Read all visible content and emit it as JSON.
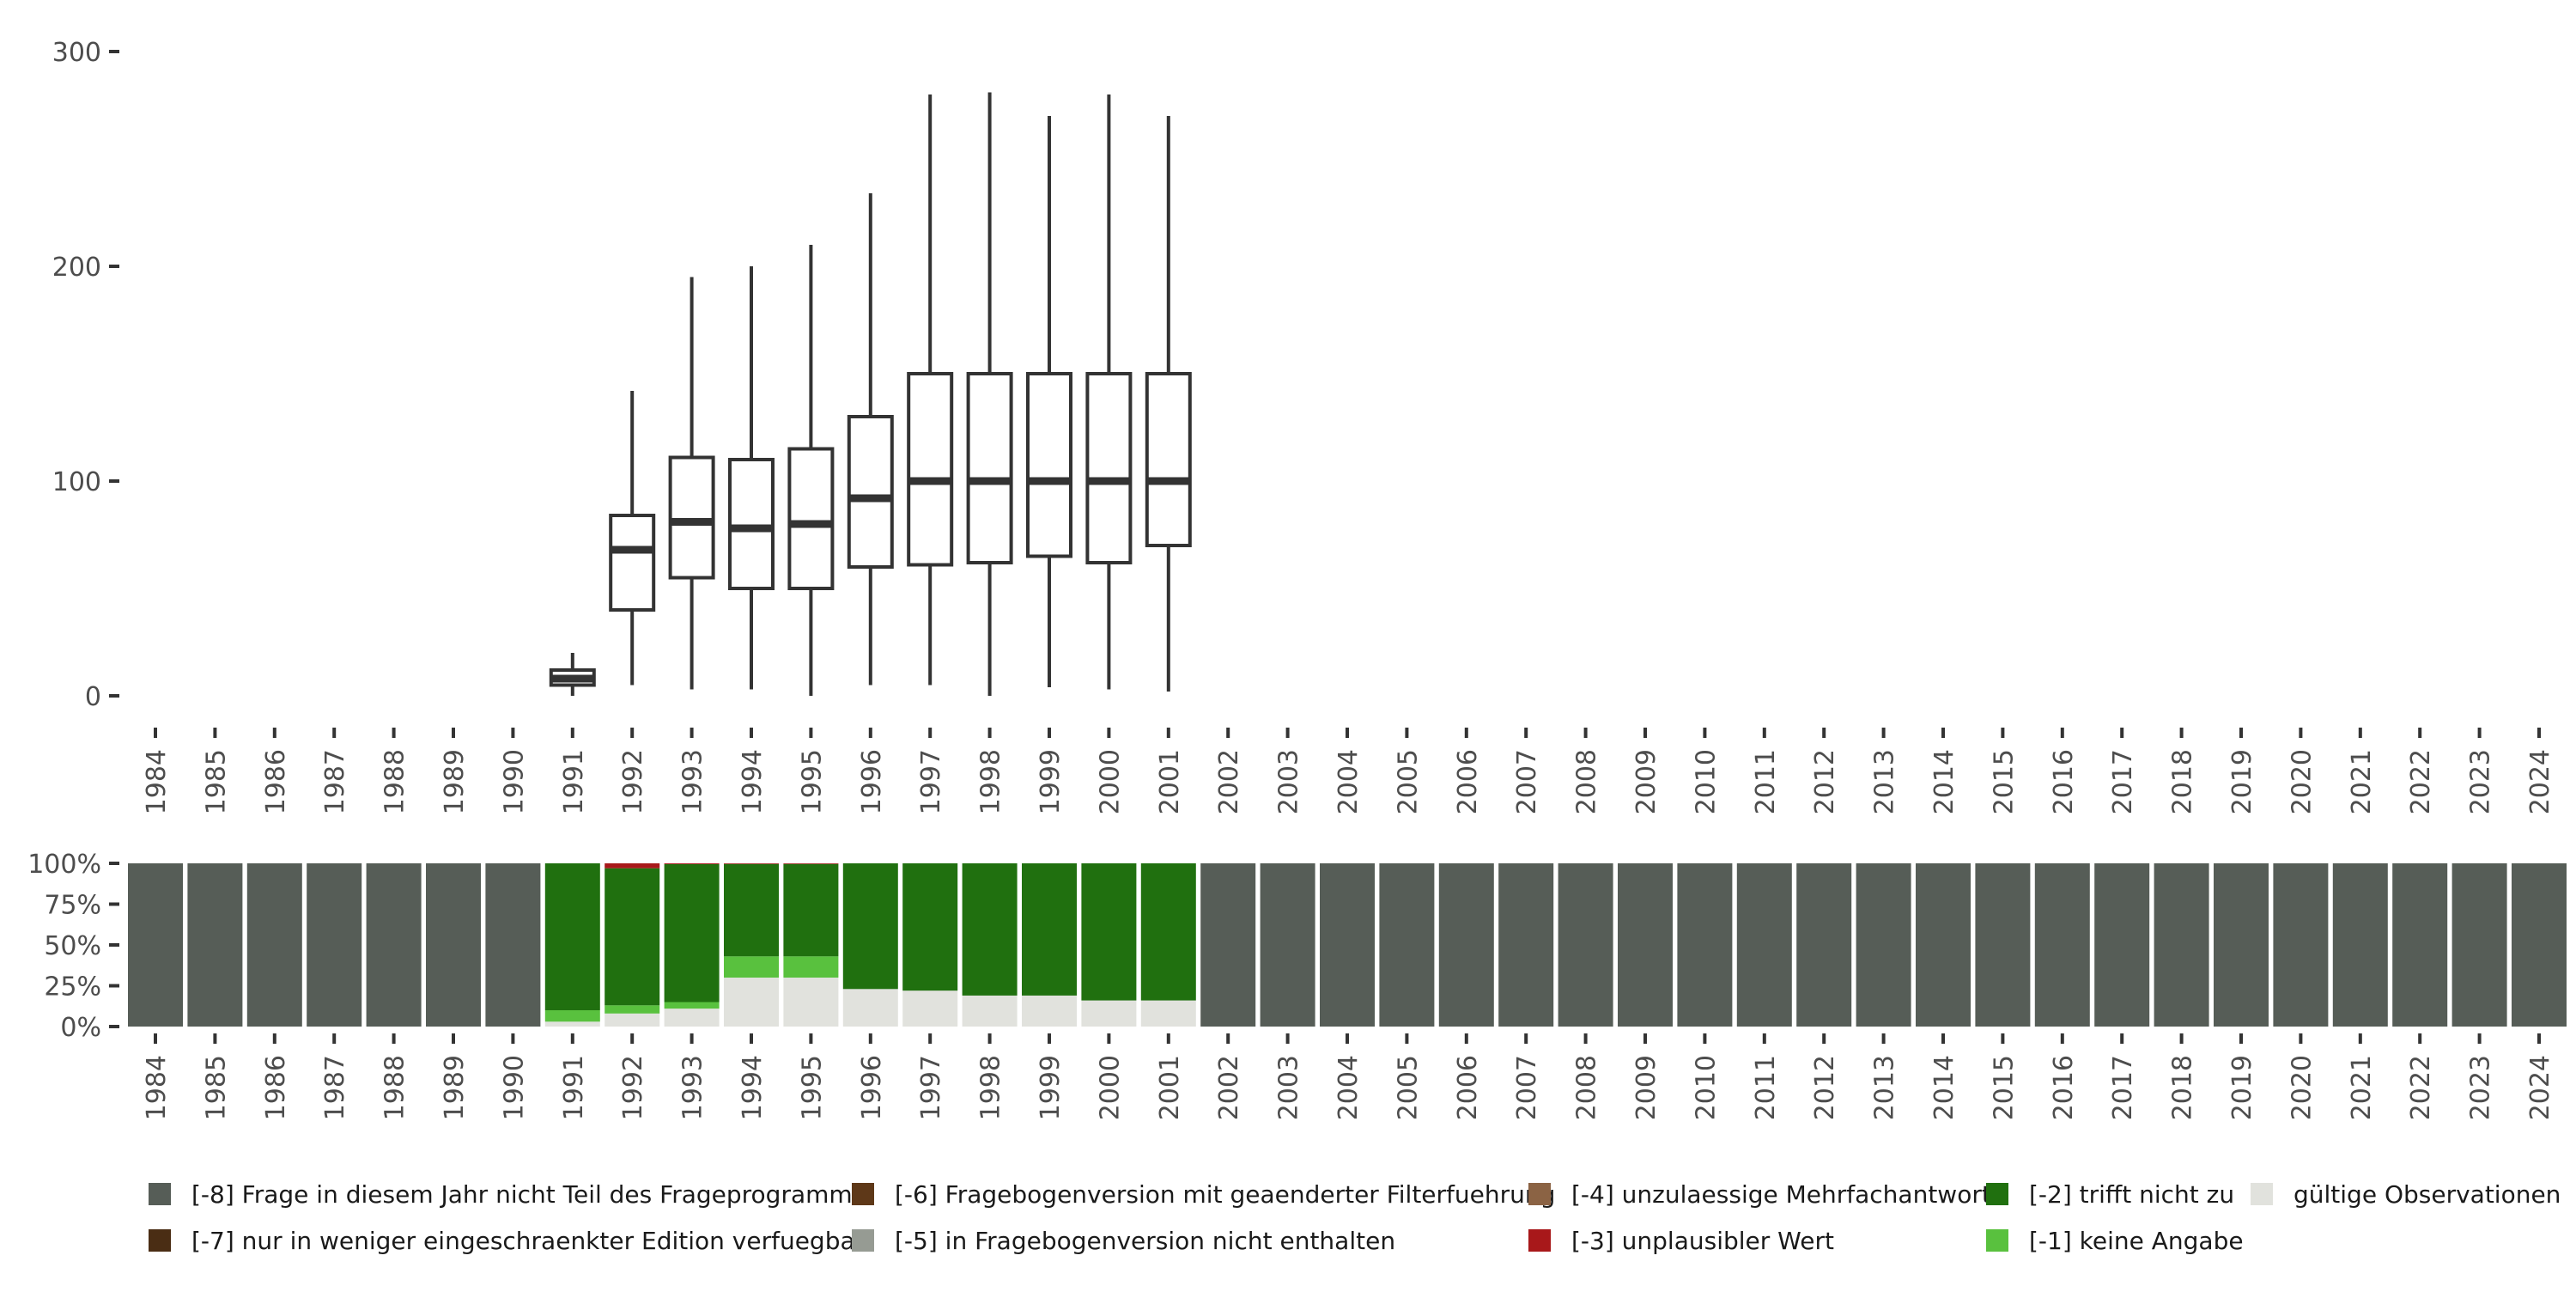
{
  "chart_data": [
    {
      "type": "boxplot",
      "title": "",
      "xlabel": "",
      "ylabel": "",
      "ylim": [
        0,
        300
      ],
      "y_ticks": [
        "0",
        "100",
        "200",
        "300"
      ],
      "categories": [
        "1984",
        "1985",
        "1986",
        "1987",
        "1988",
        "1989",
        "1990",
        "1991",
        "1992",
        "1993",
        "1994",
        "1995",
        "1996",
        "1997",
        "1998",
        "1999",
        "2000",
        "2001",
        "2002",
        "2003",
        "2004",
        "2005",
        "2006",
        "2007",
        "2008",
        "2009",
        "2010",
        "2011",
        "2012",
        "2013",
        "2014",
        "2015",
        "2016",
        "2017",
        "2018",
        "2019",
        "2020",
        "2021",
        "2022",
        "2023",
        "2024"
      ],
      "boxes": [
        {
          "year": "1991",
          "whisker_low": 0,
          "q1": 5,
          "median": 8,
          "q3": 12,
          "whisker_high": 20
        },
        {
          "year": "1992",
          "whisker_low": 5,
          "q1": 40,
          "median": 68,
          "q3": 84,
          "whisker_high": 142
        },
        {
          "year": "1993",
          "whisker_low": 3,
          "q1": 55,
          "median": 81,
          "q3": 111,
          "whisker_high": 195
        },
        {
          "year": "1994",
          "whisker_low": 3,
          "q1": 50,
          "median": 78,
          "q3": 110,
          "whisker_high": 200
        },
        {
          "year": "1995",
          "whisker_low": 0,
          "q1": 50,
          "median": 80,
          "q3": 115,
          "whisker_high": 210
        },
        {
          "year": "1996",
          "whisker_low": 5,
          "q1": 60,
          "median": 92,
          "q3": 130,
          "whisker_high": 234
        },
        {
          "year": "1997",
          "whisker_low": 5,
          "q1": 61,
          "median": 100,
          "q3": 150,
          "whisker_high": 280
        },
        {
          "year": "1998",
          "whisker_low": 0,
          "q1": 62,
          "median": 100,
          "q3": 150,
          "whisker_high": 281
        },
        {
          "year": "1999",
          "whisker_low": 4,
          "q1": 65,
          "median": 100,
          "q3": 150,
          "whisker_high": 270
        },
        {
          "year": "2000",
          "whisker_low": 3,
          "q1": 62,
          "median": 100,
          "q3": 150,
          "whisker_high": 280
        },
        {
          "year": "2001",
          "whisker_low": 2,
          "q1": 70,
          "median": 100,
          "q3": 150,
          "whisker_high": 270
        }
      ]
    },
    {
      "type": "stacked_bar",
      "title": "",
      "ylim": [
        0,
        100
      ],
      "y_ticks": [
        "0%",
        "25%",
        "50%",
        "75%",
        "100%"
      ],
      "categories": [
        "1984",
        "1985",
        "1986",
        "1987",
        "1988",
        "1989",
        "1990",
        "1991",
        "1992",
        "1993",
        "1994",
        "1995",
        "1996",
        "1997",
        "1998",
        "1999",
        "2000",
        "2001",
        "2002",
        "2003",
        "2004",
        "2005",
        "2006",
        "2007",
        "2008",
        "2009",
        "2010",
        "2011",
        "2012",
        "2013",
        "2014",
        "2015",
        "2016",
        "2017",
        "2018",
        "2019",
        "2020",
        "2021",
        "2022",
        "2023",
        "2024"
      ],
      "series": [
        {
          "name": "gültige Observationen",
          "color": "#e1e2dd",
          "values": [
            0,
            0,
            0,
            0,
            0,
            0,
            0,
            3,
            8,
            11,
            30,
            30,
            23,
            22,
            19,
            19,
            16,
            16,
            0,
            0,
            0,
            0,
            0,
            0,
            0,
            0,
            0,
            0,
            0,
            0,
            0,
            0,
            0,
            0,
            0,
            0,
            0,
            0,
            0,
            0,
            0
          ]
        },
        {
          "name": "[-1] keine Angabe",
          "color": "#59c13e",
          "values": [
            0,
            0,
            0,
            0,
            0,
            0,
            0,
            7,
            5,
            4,
            13,
            13,
            0,
            0,
            0,
            0,
            0,
            0,
            0,
            0,
            0,
            0,
            0,
            0,
            0,
            0,
            0,
            0,
            0,
            0,
            0,
            0,
            0,
            0,
            0,
            0,
            0,
            0,
            0,
            0,
            0
          ]
        },
        {
          "name": "[-2] trifft nicht zu",
          "color": "#20700f",
          "values": [
            0,
            0,
            0,
            0,
            0,
            0,
            0,
            90,
            84,
            84.5,
            56.6,
            56.6,
            77,
            78,
            81,
            81,
            84,
            84,
            0,
            0,
            0,
            0,
            0,
            0,
            0,
            0,
            0,
            0,
            0,
            0,
            0,
            0,
            0,
            0,
            0,
            0,
            0,
            0,
            0,
            0,
            0
          ]
        },
        {
          "name": "[-3] unplausibler Wert",
          "color": "#a8181a",
          "values": [
            0,
            0,
            0,
            0,
            0,
            0,
            0,
            0,
            3,
            0.5,
            0.4,
            0.4,
            0,
            0,
            0,
            0,
            0,
            0,
            0,
            0,
            0,
            0,
            0,
            0,
            0,
            0,
            0,
            0,
            0,
            0,
            0,
            0,
            0,
            0,
            0,
            0,
            0,
            0,
            0,
            0,
            0
          ]
        },
        {
          "name": "[-8] Frage in diesem Jahr nicht Teil des Frageprogramms",
          "color": "#565d57",
          "values": [
            100,
            100,
            100,
            100,
            100,
            100,
            100,
            0,
            0,
            0,
            0,
            0,
            0,
            0,
            0,
            0,
            0,
            0,
            100,
            100,
            100,
            100,
            100,
            100,
            100,
            100,
            100,
            100,
            100,
            100,
            100,
            100,
            100,
            100,
            100,
            100,
            100,
            100,
            100,
            100,
            100
          ]
        }
      ]
    }
  ],
  "legend": [
    {
      "label": "[-8] Frage in diesem Jahr nicht Teil des Frageprogramms",
      "color": "#565d57"
    },
    {
      "label": "[-7] nur in weniger eingeschraenkter Edition verfuegbar",
      "color": "#4a2d14"
    },
    {
      "label": "[-6] Fragebogenversion mit geaenderter Filterfuehrung",
      "color": "#5e3818"
    },
    {
      "label": "[-5] in Fragebogenversion nicht enthalten",
      "color": "#969b93"
    },
    {
      "label": "[-4] unzulaessige Mehrfachantwort",
      "color": "#8b6344"
    },
    {
      "label": "[-3] unplausibler Wert",
      "color": "#a8181a"
    },
    {
      "label": "[-2] trifft nicht zu",
      "color": "#20700f"
    },
    {
      "label": "[-1] keine Angabe",
      "color": "#59c13e"
    },
    {
      "label": "gültige Observationen",
      "color": "#e1e2dd"
    }
  ]
}
